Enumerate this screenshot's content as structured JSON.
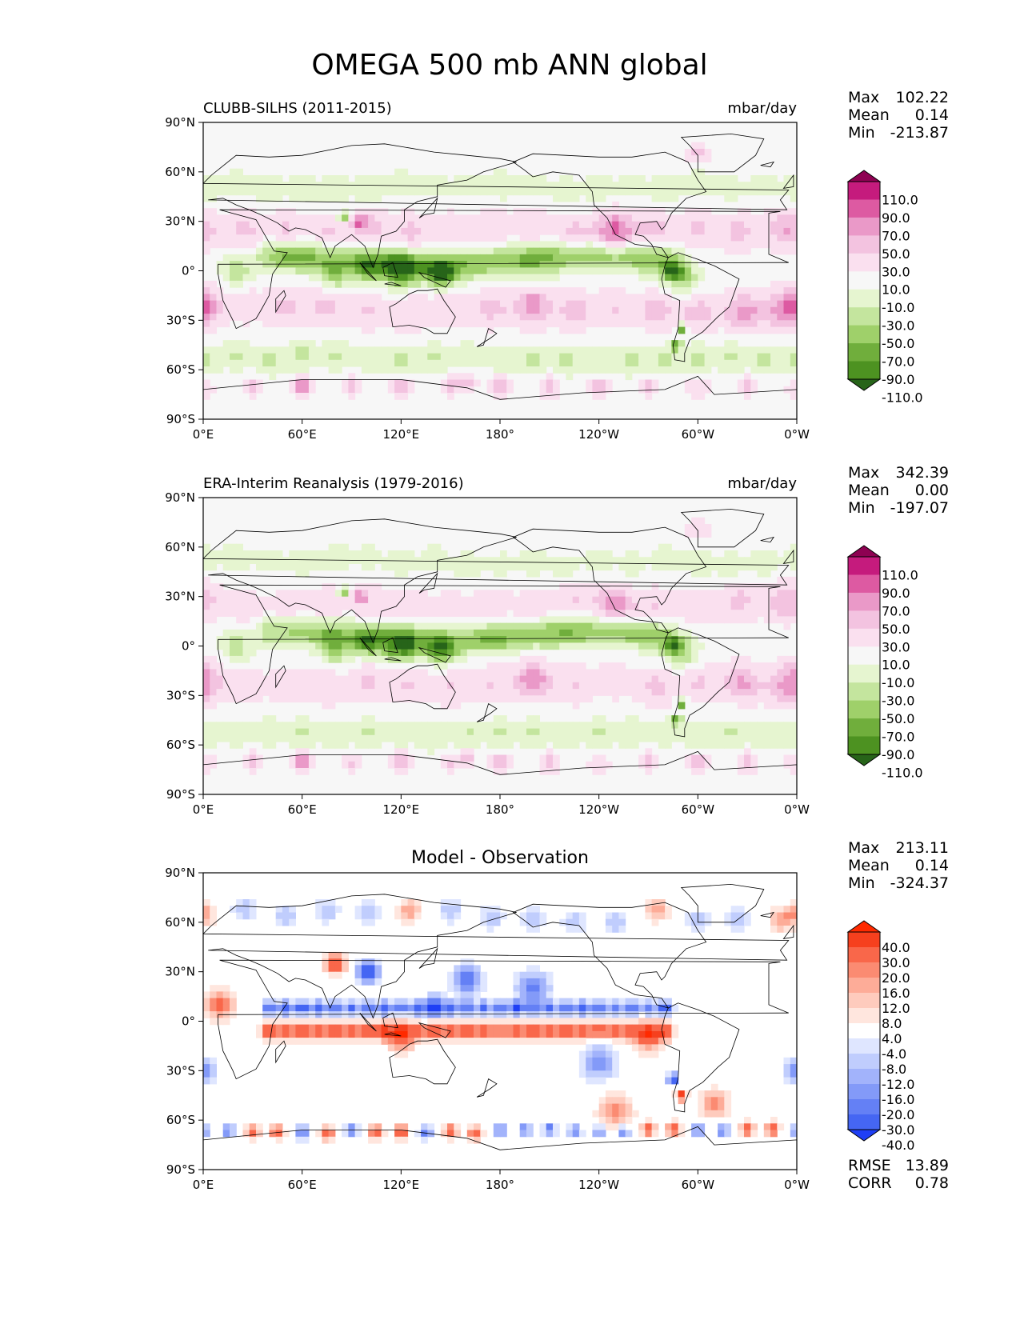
{
  "title": "OMEGA 500 mb ANN global",
  "chart_data": [
    {
      "type": "heatmap",
      "id": "p1",
      "left_title": "CLUBB-SILHS (2011-2015)",
      "right_title": "mbar/day",
      "stats": [
        {
          "label": "Max",
          "value": "102.22"
        },
        {
          "label": "Mean",
          "value": "0.14"
        },
        {
          "label": "Min",
          "value": "-213.87"
        }
      ],
      "colorbar_labels": [
        "110.0",
        "90.0",
        "70.0",
        "50.0",
        "30.0",
        "10.0",
        "-10.0",
        "-30.0",
        "-50.0",
        "-70.0",
        "-90.0",
        "-110.0"
      ],
      "colors": [
        "#8e0152",
        "#c51b7d",
        "#dd5aa2",
        "#ea99c8",
        "#f3c3e0",
        "#fae0ef",
        "#f7f7f7",
        "#e6f5d0",
        "#c4e59e",
        "#9fd06a",
        "#70ae3c",
        "#4d9221",
        "#276419"
      ],
      "x_ticks": [
        "0°E",
        "60°E",
        "120°E",
        "180°",
        "120°W",
        "60°W",
        "0°W"
      ],
      "y_ticks": [
        "90°N",
        "60°N",
        "30°N",
        "0°",
        "30°S",
        "60°S",
        "90°S"
      ],
      "xlim": [
        0,
        360
      ],
      "ylim": [
        -90,
        90
      ]
    },
    {
      "type": "heatmap",
      "id": "p2",
      "left_title": "ERA-Interim Reanalysis (1979-2016)",
      "right_title": "mbar/day",
      "stats": [
        {
          "label": "Max",
          "value": "342.39"
        },
        {
          "label": "Mean",
          "value": "0.00"
        },
        {
          "label": "Min",
          "value": "-197.07"
        }
      ],
      "colorbar_labels": [
        "110.0",
        "90.0",
        "70.0",
        "50.0",
        "30.0",
        "10.0",
        "-10.0",
        "-30.0",
        "-50.0",
        "-70.0",
        "-90.0",
        "-110.0"
      ],
      "colors": [
        "#8e0152",
        "#c51b7d",
        "#dd5aa2",
        "#ea99c8",
        "#f3c3e0",
        "#fae0ef",
        "#f7f7f7",
        "#e6f5d0",
        "#c4e59e",
        "#9fd06a",
        "#70ae3c",
        "#4d9221",
        "#276419"
      ],
      "x_ticks": [
        "0°E",
        "60°E",
        "120°E",
        "180°",
        "120°W",
        "60°W",
        "0°W"
      ],
      "y_ticks": [
        "90°N",
        "60°N",
        "30°N",
        "0°",
        "30°S",
        "60°S",
        "90°S"
      ],
      "xlim": [
        0,
        360
      ],
      "ylim": [
        -90,
        90
      ]
    },
    {
      "type": "heatmap",
      "id": "p3",
      "center_title": "Model - Observation",
      "stats": [
        {
          "label": "Max",
          "value": "213.11"
        },
        {
          "label": "Mean",
          "value": "0.14"
        },
        {
          "label": "Min",
          "value": "-324.37"
        }
      ],
      "colorbar_labels": [
        "40.0",
        "30.0",
        "20.0",
        "16.0",
        "12.0",
        "8.0",
        "4.0",
        "-4.0",
        "-8.0",
        "-12.0",
        "-16.0",
        "-20.0",
        "-30.0",
        "-40.0"
      ],
      "colors": [
        "#ff2a00",
        "#f6401e",
        "#f9674a",
        "#fb8b72",
        "#fdac98",
        "#fecbbd",
        "#ffe6de",
        "#ffffff",
        "#dfe6ff",
        "#c0cdfd",
        "#a2b3fb",
        "#839af8",
        "#6480f5",
        "#4566f3",
        "#1f3ff5"
      ],
      "x_ticks": [
        "0°E",
        "60°E",
        "120°E",
        "180°",
        "120°W",
        "60°W",
        "0°W"
      ],
      "y_ticks": [
        "90°N",
        "60°N",
        "30°N",
        "0°",
        "30°S",
        "60°S",
        "90°S"
      ],
      "xlim": [
        0,
        360
      ],
      "ylim": [
        -90,
        90
      ],
      "metrics": [
        {
          "label": "RMSE",
          "value": "13.89"
        },
        {
          "label": "CORR",
          "value": "0.78"
        }
      ]
    }
  ]
}
